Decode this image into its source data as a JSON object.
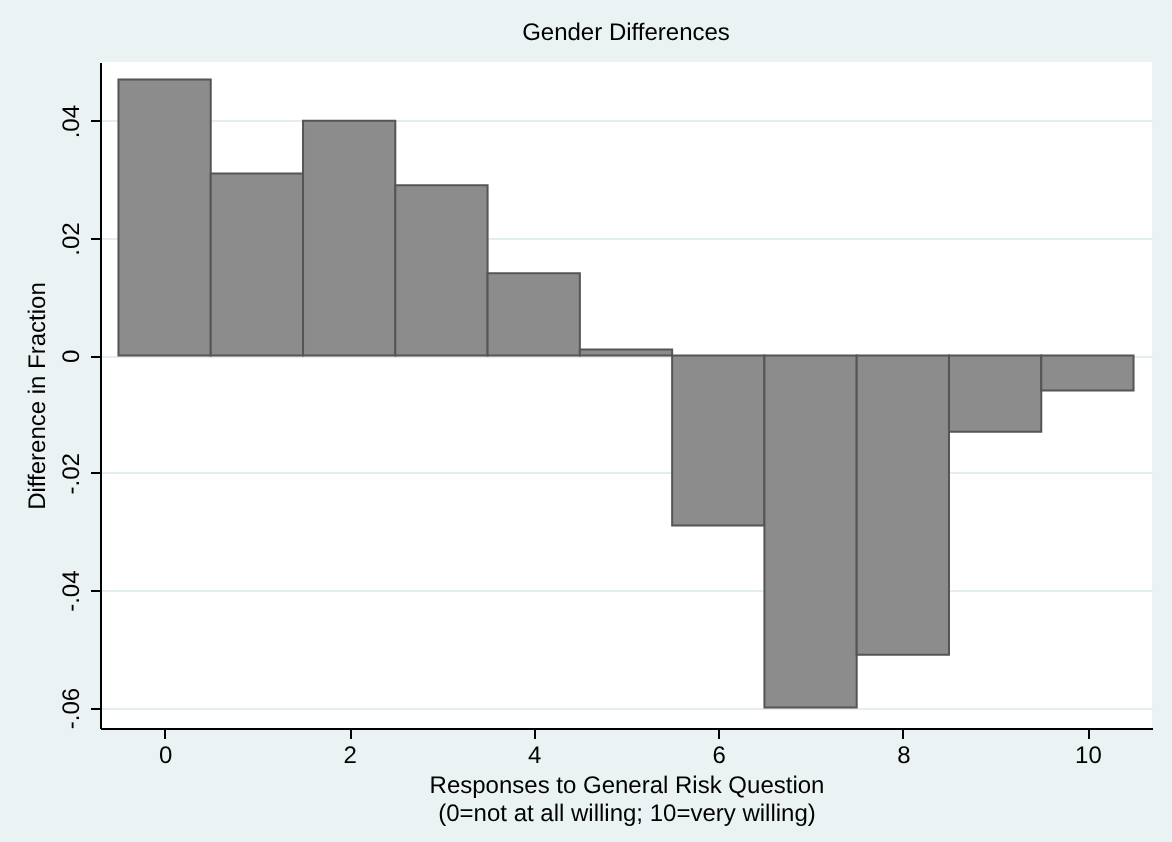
{
  "chart_data": {
    "type": "histogram",
    "title": "Gender Differences",
    "xlabel": "Responses to General Risk Question\n(0=not at all willing; 10=very willing)",
    "ylabel": "Difference in Fraction",
    "bins": [
      -0.5,
      0.5,
      1.5,
      2.5,
      3.5,
      4.5,
      5.5,
      6.5,
      7.5,
      8.5,
      9.5,
      10.5
    ],
    "values": [
      0.047,
      0.031,
      0.04,
      0.029,
      0.014,
      0.001,
      -0.029,
      -0.06,
      -0.051,
      -0.013,
      -0.006
    ],
    "color": "#8c8c8c",
    "xlim": [
      -0.7,
      10.7
    ],
    "xticks": [
      0,
      2,
      4,
      6,
      8,
      10
    ],
    "ylim": [
      -0.0635,
      0.05
    ],
    "yticks": [
      {
        "value": -0.06,
        "label": "-.06"
      },
      {
        "value": -0.04,
        "label": "-.04"
      },
      {
        "value": -0.02,
        "label": "-.02"
      },
      0,
      {
        "value": 0.02,
        "label": ".02"
      },
      {
        "value": 0.04,
        "label": ".04"
      }
    ],
    "grid": "y"
  }
}
